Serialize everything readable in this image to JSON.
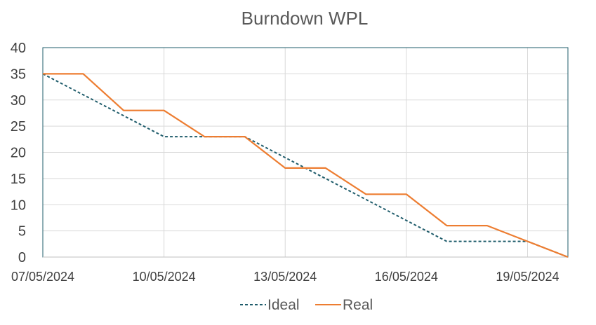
{
  "chart_data": {
    "type": "line",
    "title": "Burndown WPL",
    "xlabel": "",
    "ylabel": "",
    "x": [
      "07/05/2024",
      "08/05/2024",
      "09/05/2024",
      "10/05/2024",
      "11/05/2024",
      "12/05/2024",
      "13/05/2024",
      "14/05/2024",
      "15/05/2024",
      "16/05/2024",
      "17/05/2024",
      "18/05/2024",
      "19/05/2024",
      "20/05/2024"
    ],
    "x_tick_labels": [
      "07/05/2024",
      "10/05/2024",
      "13/05/2024",
      "16/05/2024",
      "19/05/2024"
    ],
    "ylim": [
      0,
      40
    ],
    "y_ticks": [
      0,
      5,
      10,
      15,
      20,
      25,
      30,
      35,
      40
    ],
    "grid": true,
    "legend_position": "bottom",
    "series": [
      {
        "name": "Ideal",
        "style": "dashed",
        "color": "#1f5c6b",
        "values": [
          35,
          31,
          27,
          23,
          23,
          23,
          19,
          15,
          11,
          7,
          3,
          3,
          3,
          0
        ]
      },
      {
        "name": "Real",
        "style": "solid",
        "color": "#ed7d31",
        "values": [
          35,
          35,
          28,
          28,
          23,
          23,
          17,
          17,
          12,
          12,
          6,
          6,
          3,
          0
        ]
      }
    ]
  }
}
